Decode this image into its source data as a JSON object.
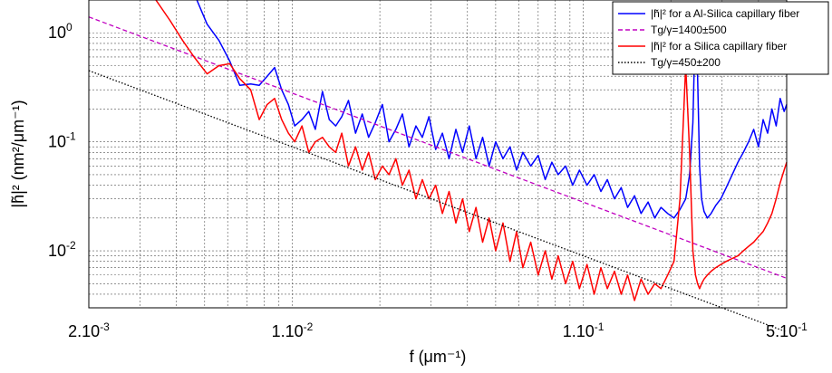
{
  "chart_data": {
    "type": "line",
    "xscale": "log",
    "yscale": "log",
    "xlim": [
      0.002,
      0.5
    ],
    "ylim": [
      0.003,
      2
    ],
    "grid": true,
    "legend_position": "top-right",
    "xlabel": "f (μm⁻¹)",
    "ylabel": "|h̃|² (nm²/μm⁻¹)",
    "x_ticks": [
      {
        "value": 0.002,
        "label_base": "2.10",
        "label_exp": "-3"
      },
      {
        "value": 0.01,
        "label_base": "1.10",
        "label_exp": "-2"
      },
      {
        "value": 0.1,
        "label_base": "1.10",
        "label_exp": "-1"
      },
      {
        "value": 0.5,
        "label_base": "5.10",
        "label_exp": "-1"
      }
    ],
    "y_ticks": [
      {
        "value": 1,
        "label_base": "10",
        "label_exp": "0"
      },
      {
        "value": 0.1,
        "label_base": "10",
        "label_exp": "-1"
      },
      {
        "value": 0.01,
        "label_base": "10",
        "label_exp": "-2"
      }
    ],
    "series": [
      {
        "name": "|h̃|² for a Al-Silica capillary fiber",
        "color": "#0000ff",
        "style": "solid",
        "x": [
          0.0047,
          0.0051,
          0.0056,
          0.0061,
          0.0066,
          0.0072,
          0.0077,
          0.0082,
          0.0087,
          0.0092,
          0.0097,
          0.0102,
          0.0108,
          0.0114,
          0.012,
          0.0127,
          0.0134,
          0.0141,
          0.0148,
          0.0156,
          0.0165,
          0.0174,
          0.0183,
          0.0193,
          0.0204,
          0.0215,
          0.0227,
          0.0239,
          0.0252,
          0.0266,
          0.028,
          0.0295,
          0.0311,
          0.0328,
          0.0346,
          0.0365,
          0.0385,
          0.0406,
          0.0428,
          0.0451,
          0.0475,
          0.05,
          0.053,
          0.056,
          0.059,
          0.062,
          0.066,
          0.07,
          0.074,
          0.078,
          0.082,
          0.087,
          0.092,
          0.097,
          0.103,
          0.109,
          0.115,
          0.121,
          0.128,
          0.135,
          0.142,
          0.15,
          0.158,
          0.167,
          0.176,
          0.185,
          0.195,
          0.205,
          0.215,
          0.225,
          0.232,
          0.238,
          0.243,
          0.247,
          0.251,
          0.255,
          0.26,
          0.267,
          0.275,
          0.285,
          0.297,
          0.31,
          0.325,
          0.34,
          0.355,
          0.37,
          0.385,
          0.4,
          0.415,
          0.43,
          0.445,
          0.46,
          0.475,
          0.49,
          0.5
        ],
        "y": [
          2.0,
          1.2,
          0.85,
          0.55,
          0.33,
          0.34,
          0.33,
          0.4,
          0.48,
          0.3,
          0.22,
          0.14,
          0.16,
          0.19,
          0.13,
          0.29,
          0.16,
          0.14,
          0.17,
          0.24,
          0.12,
          0.18,
          0.11,
          0.15,
          0.22,
          0.1,
          0.13,
          0.18,
          0.09,
          0.14,
          0.11,
          0.17,
          0.085,
          0.12,
          0.07,
          0.13,
          0.08,
          0.14,
          0.07,
          0.11,
          0.06,
          0.1,
          0.07,
          0.09,
          0.055,
          0.08,
          0.06,
          0.075,
          0.045,
          0.065,
          0.05,
          0.06,
          0.04,
          0.055,
          0.04,
          0.05,
          0.035,
          0.045,
          0.03,
          0.038,
          0.025,
          0.032,
          0.022,
          0.028,
          0.02,
          0.025,
          0.022,
          0.02,
          0.024,
          0.03,
          0.05,
          0.15,
          1.5,
          0.4,
          0.06,
          0.03,
          0.023,
          0.02,
          0.022,
          0.026,
          0.03,
          0.038,
          0.05,
          0.065,
          0.08,
          0.1,
          0.13,
          0.09,
          0.16,
          0.12,
          0.2,
          0.14,
          0.25,
          0.19,
          0.22
        ]
      },
      {
        "name": "Tg/γ=1400±500",
        "color": "#c000c0",
        "style": "dashed",
        "x": [
          0.002,
          0.5
        ],
        "y": [
          1.4,
          0.0056
        ]
      },
      {
        "name": "|h̃|² for a Silica capillary fiber",
        "color": "#ff0000",
        "style": "solid",
        "x": [
          0.0034,
          0.0038,
          0.0042,
          0.0046,
          0.0051,
          0.0056,
          0.0061,
          0.0066,
          0.0072,
          0.0077,
          0.0082,
          0.0087,
          0.0092,
          0.0097,
          0.0102,
          0.0108,
          0.0114,
          0.012,
          0.0127,
          0.0134,
          0.0141,
          0.0148,
          0.0156,
          0.0165,
          0.0174,
          0.0183,
          0.0193,
          0.0204,
          0.0215,
          0.0227,
          0.0239,
          0.0252,
          0.0266,
          0.028,
          0.0295,
          0.0311,
          0.0328,
          0.0346,
          0.0365,
          0.0385,
          0.0406,
          0.0428,
          0.0451,
          0.0475,
          0.05,
          0.053,
          0.056,
          0.059,
          0.062,
          0.066,
          0.07,
          0.074,
          0.078,
          0.082,
          0.087,
          0.092,
          0.097,
          0.103,
          0.109,
          0.115,
          0.121,
          0.128,
          0.135,
          0.142,
          0.15,
          0.158,
          0.167,
          0.176,
          0.185,
          0.195,
          0.205,
          0.215,
          0.225,
          0.232,
          0.238,
          0.243,
          0.247,
          0.251,
          0.255,
          0.26,
          0.267,
          0.275,
          0.285,
          0.297,
          0.31,
          0.325,
          0.34,
          0.355,
          0.37,
          0.385,
          0.4,
          0.415,
          0.43,
          0.445,
          0.46,
          0.475,
          0.49,
          0.5
        ],
        "y": [
          2.0,
          1.3,
          0.85,
          0.6,
          0.42,
          0.5,
          0.52,
          0.38,
          0.3,
          0.16,
          0.22,
          0.25,
          0.16,
          0.12,
          0.1,
          0.14,
          0.08,
          0.1,
          0.11,
          0.09,
          0.08,
          0.12,
          0.06,
          0.09,
          0.055,
          0.08,
          0.045,
          0.06,
          0.05,
          0.07,
          0.04,
          0.055,
          0.03,
          0.045,
          0.03,
          0.04,
          0.022,
          0.035,
          0.018,
          0.03,
          0.015,
          0.025,
          0.012,
          0.02,
          0.01,
          0.018,
          0.008,
          0.015,
          0.007,
          0.012,
          0.006,
          0.01,
          0.0055,
          0.009,
          0.005,
          0.008,
          0.0045,
          0.0075,
          0.004,
          0.007,
          0.0045,
          0.0065,
          0.004,
          0.006,
          0.0035,
          0.0055,
          0.004,
          0.005,
          0.0045,
          0.006,
          0.008,
          0.03,
          0.5,
          0.08,
          0.01,
          0.006,
          0.005,
          0.0045,
          0.005,
          0.0055,
          0.006,
          0.0065,
          0.007,
          0.0075,
          0.008,
          0.0085,
          0.009,
          0.01,
          0.011,
          0.012,
          0.0135,
          0.015,
          0.018,
          0.022,
          0.03,
          0.042,
          0.055,
          0.065
        ]
      },
      {
        "name": "Tg/γ=450±200",
        "color": "#000000",
        "style": "dotted",
        "x": [
          0.002,
          0.5
        ],
        "y": [
          0.45,
          0.0018
        ]
      }
    ]
  }
}
